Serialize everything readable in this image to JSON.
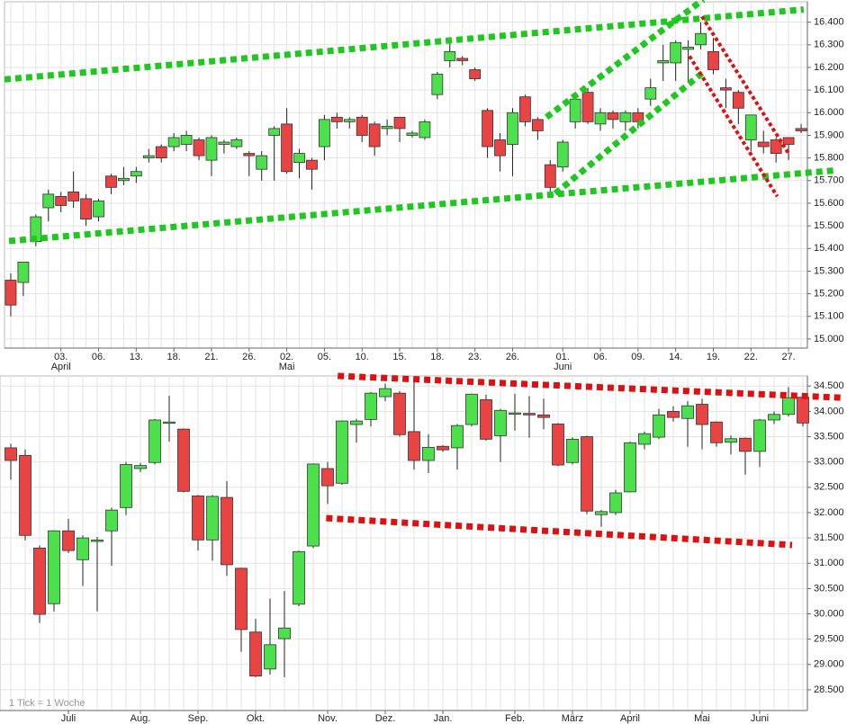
{
  "chart_data": [
    {
      "type": "candlestick",
      "categories": [
        null,
        null,
        null,
        null,
        "03.",
        null,
        null,
        "06.",
        null,
        null,
        "13.",
        null,
        null,
        "18.",
        null,
        null,
        "21.",
        null,
        null,
        "26.",
        null,
        null,
        "02.",
        null,
        null,
        "05.",
        null,
        null,
        "10.",
        null,
        null,
        "15.",
        null,
        null,
        "18.",
        null,
        null,
        "23.",
        null,
        null,
        "26.",
        null,
        null,
        null,
        "01.",
        null,
        null,
        "06.",
        null,
        null,
        "09.",
        null,
        null,
        "14.",
        null,
        null,
        "19.",
        null,
        null,
        "22.",
        null,
        null,
        "27.",
        null
      ],
      "months": {
        "labels": [
          "April",
          "Mai",
          "Juni"
        ],
        "category_index": [
          4,
          22,
          44
        ]
      },
      "open": [
        15.26,
        15.25,
        15.43,
        15.58,
        15.63,
        15.65,
        15.62,
        15.54,
        15.72,
        15.7,
        15.72,
        15.8,
        15.85,
        15.85,
        15.86,
        15.88,
        15.79,
        15.86,
        15.85,
        15.82,
        15.75,
        15.9,
        15.95,
        15.78,
        15.79,
        15.85,
        15.98,
        15.96,
        15.98,
        15.95,
        15.93,
        15.98,
        15.9,
        15.89,
        16.08,
        16.23,
        16.24,
        16.19,
        16.01,
        15.88,
        15.86,
        16.07,
        15.97,
        15.77,
        15.76,
        15.96,
        16.09,
        15.95,
        16.0,
        15.96,
        16.0,
        16.06,
        16.22,
        16.22,
        16.28,
        16.3,
        16.27,
        16.11,
        16.09,
        15.88,
        15.87,
        15.88,
        15.89,
        15.93
      ],
      "high": [
        15.29,
        15.34,
        15.55,
        15.66,
        15.65,
        15.74,
        15.64,
        15.62,
        15.73,
        15.76,
        15.76,
        15.84,
        15.86,
        15.91,
        15.92,
        15.89,
        15.9,
        15.88,
        15.89,
        15.83,
        15.83,
        15.94,
        16.02,
        15.84,
        15.8,
        15.99,
        16.0,
        15.98,
        15.99,
        15.96,
        15.97,
        15.98,
        15.92,
        15.97,
        16.18,
        16.32,
        16.25,
        16.2,
        16.02,
        15.91,
        16.02,
        16.08,
        15.98,
        15.79,
        15.88,
        16.08,
        16.11,
        16.02,
        16.01,
        16.01,
        16.02,
        16.15,
        16.3,
        16.32,
        16.32,
        16.4,
        16.33,
        16.15,
        16.1,
        15.99,
        15.92,
        15.89,
        15.89,
        15.95
      ],
      "low": [
        15.1,
        15.19,
        15.41,
        15.52,
        15.56,
        15.58,
        15.5,
        15.52,
        15.64,
        15.68,
        15.69,
        15.78,
        15.78,
        15.83,
        15.83,
        15.79,
        15.72,
        15.82,
        15.84,
        15.72,
        15.7,
        15.7,
        15.73,
        15.71,
        15.66,
        15.79,
        15.93,
        15.93,
        15.87,
        15.81,
        15.9,
        15.87,
        15.89,
        15.88,
        16.06,
        16.2,
        16.21,
        16.14,
        15.8,
        15.74,
        15.72,
        15.94,
        15.88,
        15.64,
        15.74,
        15.93,
        15.95,
        15.92,
        15.93,
        15.92,
        15.93,
        16.03,
        16.14,
        16.14,
        16.14,
        16.28,
        16.17,
        16.02,
        15.95,
        15.83,
        15.82,
        15.78,
        15.79,
        15.91
      ],
      "close": [
        15.15,
        15.34,
        15.54,
        15.64,
        15.59,
        15.61,
        15.53,
        15.61,
        15.67,
        15.71,
        15.74,
        15.81,
        15.8,
        15.89,
        15.9,
        15.81,
        15.89,
        15.87,
        15.88,
        15.81,
        15.81,
        15.93,
        15.74,
        15.82,
        15.75,
        15.97,
        15.96,
        15.97,
        15.9,
        15.85,
        15.94,
        15.93,
        15.91,
        15.96,
        16.17,
        16.27,
        16.23,
        16.15,
        15.85,
        15.81,
        16.0,
        15.96,
        15.92,
        15.67,
        15.87,
        16.06,
        15.96,
        16.0,
        15.97,
        16.0,
        15.96,
        16.11,
        16.23,
        16.31,
        16.29,
        16.35,
        16.19,
        16.1,
        16.02,
        15.99,
        15.85,
        15.82,
        15.86,
        15.92
      ],
      "up_color": "#4ce04c",
      "down_color": "#e84444",
      "ylim": [
        14.96,
        16.49
      ],
      "yticks": [
        {
          "value": 15.0,
          "label": "15.000"
        },
        {
          "value": 15.1,
          "label": "15.100"
        },
        {
          "value": 15.2,
          "label": "15.200"
        },
        {
          "value": 15.3,
          "label": "15.300"
        },
        {
          "value": 15.4,
          "label": "15.400"
        },
        {
          "value": 15.5,
          "label": "15.500"
        },
        {
          "value": 15.6,
          "label": "15.600"
        },
        {
          "value": 15.7,
          "label": "15.700"
        },
        {
          "value": 15.8,
          "label": "15.800"
        },
        {
          "value": 15.9,
          "label": "15.900"
        },
        {
          "value": 16.0,
          "label": "16.000"
        },
        {
          "value": 16.1,
          "label": "16.100"
        },
        {
          "value": 16.2,
          "label": "16.200"
        },
        {
          "value": 16.3,
          "label": "16.300"
        },
        {
          "value": 16.4,
          "label": "16.400"
        }
      ],
      "grid": true,
      "trend_lines": [
        {
          "color": "#1ec81e",
          "x": [
            -0.5,
            63.2
          ],
          "y": [
            16.147,
            16.456
          ]
        },
        {
          "color": "#1ec81e",
          "x": [
            -0.14,
            65.9
          ],
          "y": [
            15.433,
            15.746
          ]
        },
        {
          "color": "#1ec81e",
          "x": [
            42.7,
            55.2
          ],
          "y": [
            15.98,
            16.5
          ]
        },
        {
          "color": "#1ec81e",
          "x": [
            43.4,
            55.2
          ],
          "y": [
            15.643,
            16.179
          ]
        },
        {
          "color": "#dd1111",
          "x": [
            55.1,
            62.0
          ],
          "y": [
            16.425,
            15.82
          ]
        },
        {
          "color": "#dd1111",
          "x": [
            54.1,
            61.1
          ],
          "y": [
            16.25,
            15.63
          ]
        }
      ]
    },
    {
      "type": "candlestick",
      "annotation": "1 Tick = 1 Woche",
      "categories": [
        null,
        null,
        null,
        null,
        "Juli",
        null,
        null,
        null,
        null,
        "Aug.",
        null,
        null,
        null,
        "Sep.",
        null,
        null,
        null,
        "Okt.",
        null,
        null,
        null,
        null,
        "Nov.",
        null,
        null,
        null,
        "Dez.",
        null,
        null,
        null,
        "Jan.",
        null,
        null,
        null,
        null,
        "Feb.",
        null,
        null,
        null,
        "März",
        null,
        null,
        null,
        "April",
        null,
        null,
        null,
        null,
        "Mai",
        null,
        null,
        null,
        "Juni",
        null,
        null,
        null
      ],
      "open": [
        33.28,
        33.13,
        31.3,
        30.2,
        31.64,
        31.07,
        31.43,
        31.64,
        32.1,
        32.87,
        32.99,
        33.77,
        33.65,
        32.33,
        31.46,
        32.3,
        30.9,
        29.64,
        28.91,
        29.51,
        30.19,
        31.34,
        32.87,
        32.58,
        33.74,
        33.84,
        34.29,
        34.36,
        33.6,
        33.03,
        33.31,
        33.28,
        33.74,
        34.23,
        33.52,
        33.95,
        33.96,
        33.93,
        33.75,
        32.99,
        33.5,
        31.96,
        32.0,
        32.41,
        33.35,
        33.49,
        34.0,
        33.86,
        34.14,
        33.79,
        33.39,
        33.47,
        33.21,
        33.83,
        33.94,
        34.28
      ],
      "high": [
        33.36,
        33.25,
        31.35,
        31.65,
        31.88,
        31.55,
        31.52,
        32.1,
        33.0,
        32.98,
        33.85,
        34.31,
        33.66,
        32.35,
        32.35,
        32.62,
        30.91,
        29.9,
        30.3,
        30.45,
        31.25,
        32.97,
        33.0,
        33.82,
        33.85,
        34.38,
        34.55,
        34.4,
        34.6,
        33.55,
        33.33,
        33.75,
        34.35,
        34.33,
        34.05,
        34.35,
        34.3,
        34.25,
        33.77,
        33.49,
        33.52,
        32.05,
        32.45,
        33.4,
        33.6,
        34.05,
        34.1,
        34.2,
        34.25,
        33.8,
        33.52,
        33.48,
        33.85,
        34.0,
        34.48,
        34.3
      ],
      "low": [
        32.65,
        31.45,
        29.82,
        30.05,
        31.2,
        30.55,
        30.05,
        30.95,
        31.95,
        32.8,
        32.95,
        33.4,
        32.4,
        31.25,
        31.05,
        30.75,
        29.25,
        28.75,
        28.8,
        28.75,
        30.15,
        31.3,
        32.17,
        32.55,
        33.38,
        33.7,
        34.2,
        33.5,
        32.85,
        32.78,
        33.2,
        32.85,
        33.7,
        33.42,
        33.0,
        33.62,
        33.48,
        33.65,
        32.92,
        32.95,
        31.97,
        31.72,
        31.95,
        32.4,
        33.25,
        33.45,
        33.8,
        33.3,
        33.25,
        33.3,
        33.15,
        32.75,
        32.9,
        33.75,
        33.9,
        33.7
      ],
      "close": [
        33.03,
        31.55,
        29.99,
        31.64,
        31.25,
        31.5,
        31.46,
        32.05,
        32.95,
        32.93,
        33.83,
        33.79,
        32.42,
        31.46,
        32.32,
        30.97,
        29.69,
        28.77,
        29.39,
        29.72,
        31.23,
        32.96,
        32.53,
        33.81,
        33.81,
        34.36,
        34.45,
        33.54,
        33.03,
        33.29,
        33.24,
        33.72,
        34.34,
        33.45,
        34.02,
        33.97,
        33.93,
        33.88,
        32.94,
        33.45,
        32.03,
        32.02,
        32.39,
        33.38,
        33.56,
        33.93,
        33.88,
        34.11,
        33.74,
        33.38,
        33.46,
        33.21,
        33.83,
        33.94,
        34.27,
        33.77
      ],
      "up_color": "#4ce04c",
      "down_color": "#e84444",
      "ylim": [
        28.09,
        34.7
      ],
      "yticks": [
        {
          "value": 28.5,
          "label": "28.500"
        },
        {
          "value": 29.0,
          "label": "29.000"
        },
        {
          "value": 29.5,
          "label": "29.500"
        },
        {
          "value": 30.0,
          "label": "30.000"
        },
        {
          "value": 30.5,
          "label": "30.500"
        },
        {
          "value": 31.0,
          "label": "31.000"
        },
        {
          "value": 31.5,
          "label": "31.500"
        },
        {
          "value": 32.0,
          "label": "32.000"
        },
        {
          "value": 32.5,
          "label": "32.500"
        },
        {
          "value": 33.0,
          "label": "33.000"
        },
        {
          "value": 33.5,
          "label": "33.500"
        },
        {
          "value": 34.0,
          "label": "34.000"
        },
        {
          "value": 34.5,
          "label": "34.500"
        }
      ],
      "grid": true,
      "trend_lines": [
        {
          "color": "#dd1111",
          "x": [
            22.7,
            57.7
          ],
          "y": [
            34.7,
            34.27
          ]
        },
        {
          "color": "#dd1111",
          "x": [
            21.9,
            54.25
          ],
          "y": [
            31.89,
            31.36
          ]
        }
      ]
    }
  ]
}
